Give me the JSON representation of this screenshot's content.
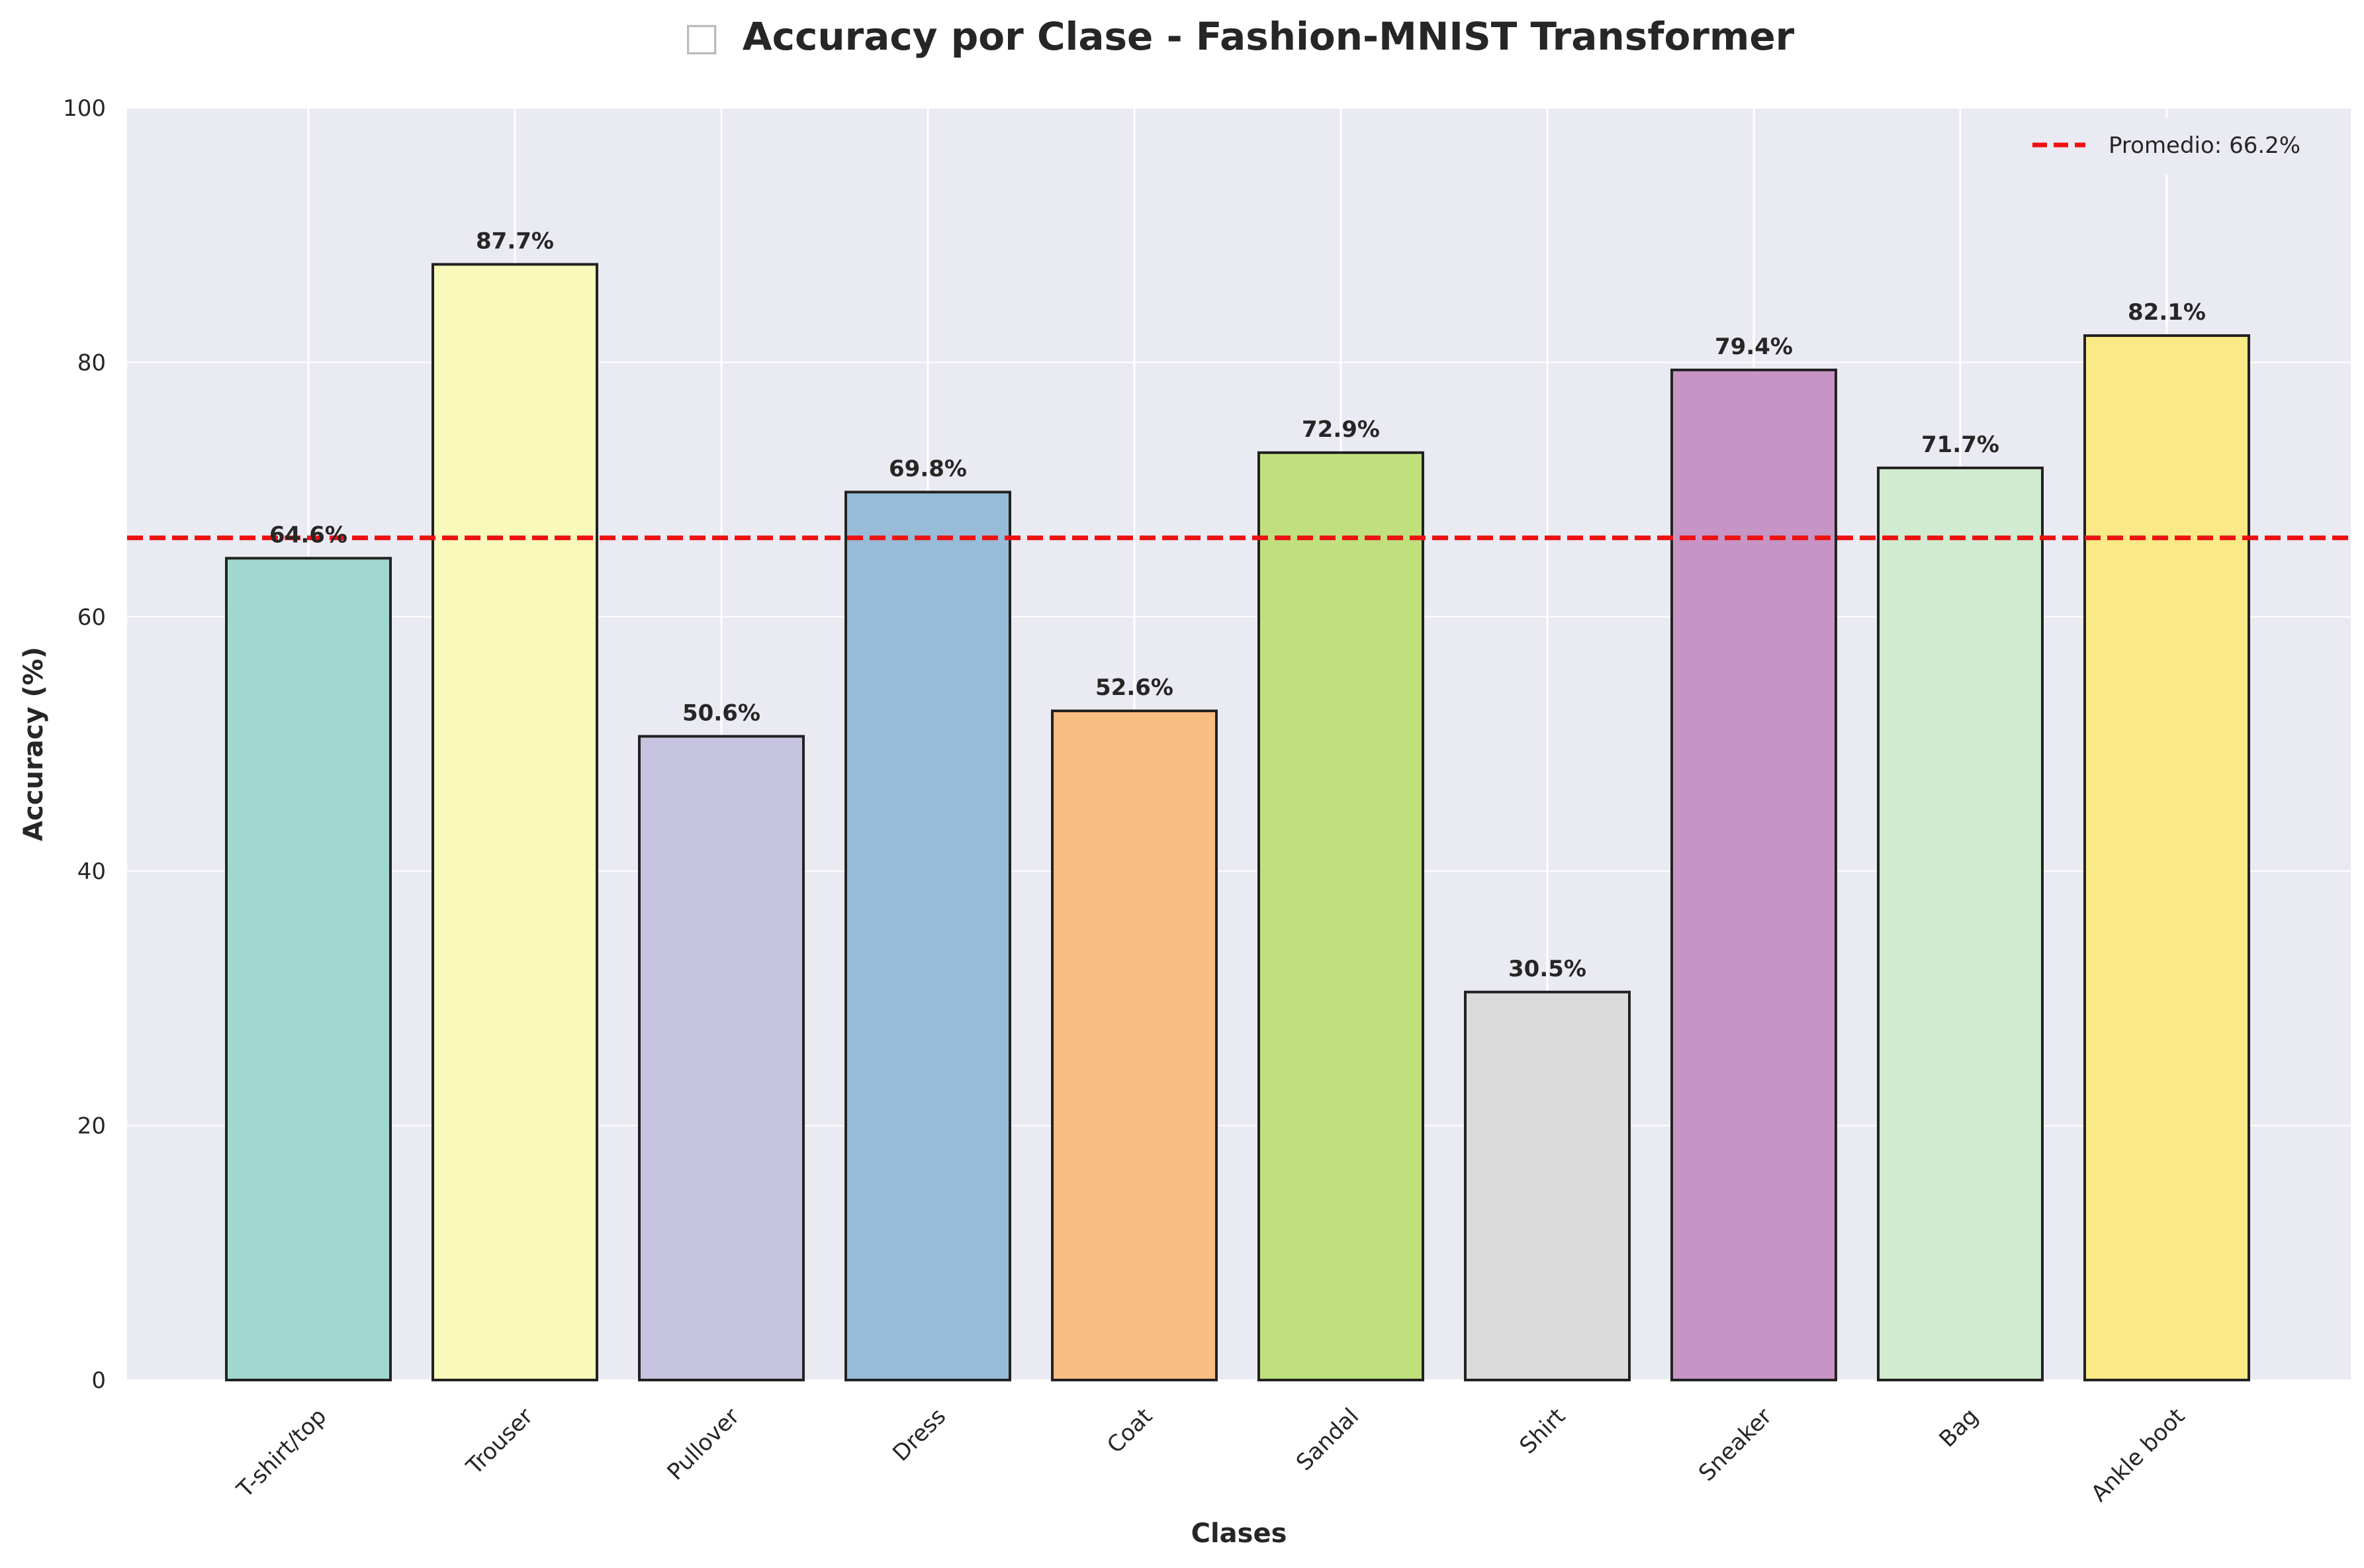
{
  "chart_data": {
    "type": "bar",
    "title": "Accuracy por Clase - Fashion-MNIST Transformer",
    "title_icon": "□",
    "xlabel": "Clases",
    "ylabel": "Accuracy (%)",
    "ylim": [
      0,
      100
    ],
    "yticks": [
      0,
      20,
      40,
      60,
      80,
      100
    ],
    "grid": true,
    "legend_position": "top-right",
    "categories": [
      "T-shirt/top",
      "Trouser",
      "Pullover",
      "Dress",
      "Coat",
      "Sandal",
      "Shirt",
      "Sneaker",
      "Bag",
      "Ankle boot"
    ],
    "values": [
      64.6,
      87.7,
      50.6,
      69.8,
      52.6,
      72.9,
      30.5,
      79.4,
      71.7,
      82.1
    ],
    "data_labels": [
      "64.6%",
      "87.7%",
      "50.6%",
      "69.8%",
      "52.6%",
      "72.9%",
      "30.5%",
      "79.4%",
      "71.7%",
      "82.1%"
    ],
    "colors": [
      "#a0d8cf",
      "#f9f9bb",
      "#c6c3e0",
      "#98bbd7",
      "#f8bd80",
      "#bfe07d",
      "#dbdbdb",
      "#c794c6",
      "#d1ebd0",
      "#faea87"
    ],
    "average": {
      "value": 66.2,
      "label": "Promedio: 66.2%",
      "color": "#ee1111"
    }
  }
}
